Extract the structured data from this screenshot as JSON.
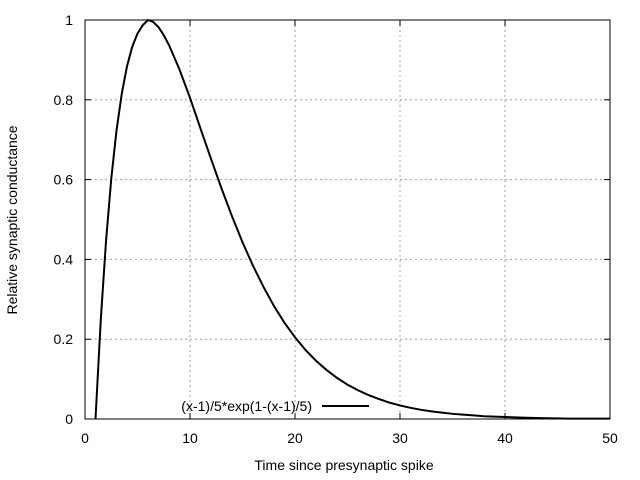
{
  "chart_data": {
    "type": "line",
    "xlabel": "Time since presynaptic spike",
    "ylabel": "Relative synaptic conductance",
    "xlim": [
      0,
      50
    ],
    "ylim": [
      0,
      1
    ],
    "x_ticks": [
      0,
      10,
      20,
      30,
      40,
      50
    ],
    "y_ticks": [
      0,
      0.2,
      0.4,
      0.6,
      0.8,
      1
    ],
    "x_tick_labels": [
      "0",
      "10",
      "20",
      "30",
      "40",
      "50"
    ],
    "y_tick_labels": [
      "0",
      "0.2",
      "0.4",
      "0.6",
      "0.8",
      "1"
    ],
    "grid": true,
    "legend_position": "bottom-center",
    "series": [
      {
        "name": "(x-1)/5*exp(1-(x-1)/5)",
        "color": "#000000",
        "x": [
          1,
          1.5,
          2,
          2.5,
          3,
          3.5,
          4,
          4.5,
          5,
          5.5,
          6,
          6.5,
          7,
          7.5,
          8,
          9,
          10,
          11,
          12,
          13,
          14,
          15,
          16,
          17,
          18,
          19,
          20,
          21,
          22,
          23,
          24,
          25,
          26,
          27,
          28,
          29,
          30,
          31,
          32,
          33,
          34,
          35,
          36,
          37,
          38,
          39,
          40,
          42,
          44,
          46,
          48,
          50
        ],
        "y": [
          0,
          0.248,
          0.445,
          0.602,
          0.723,
          0.815,
          0.884,
          0.933,
          0.966,
          0.987,
          1,
          0.995,
          0.982,
          0.962,
          0.937,
          0.876,
          0.805,
          0.728,
          0.652,
          0.578,
          0.508,
          0.443,
          0.384,
          0.331,
          0.283,
          0.241,
          0.205,
          0.173,
          0.146,
          0.123,
          0.103,
          0.086,
          0.072,
          0.06,
          0.05,
          0.041,
          0.034,
          0.028,
          0.023,
          0.019,
          0.016,
          0.013,
          0.011,
          0.009,
          0.007,
          0.006,
          0.005,
          0.003,
          0.002,
          0.001,
          0.001,
          0.001
        ]
      }
    ]
  }
}
